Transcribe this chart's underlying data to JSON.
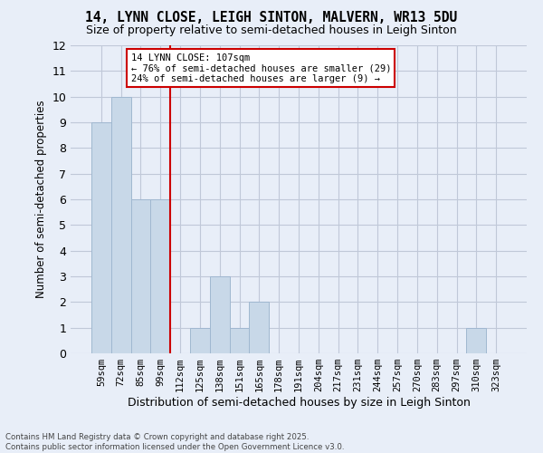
{
  "title": "14, LYNN CLOSE, LEIGH SINTON, MALVERN, WR13 5DU",
  "subtitle": "Size of property relative to semi-detached houses in Leigh Sinton",
  "xlabel": "Distribution of semi-detached houses by size in Leigh Sinton",
  "ylabel": "Number of semi-detached properties",
  "footer_line1": "Contains HM Land Registry data © Crown copyright and database right 2025.",
  "footer_line2": "Contains public sector information licensed under the Open Government Licence v3.0.",
  "categories": [
    "59sqm",
    "72sqm",
    "85sqm",
    "99sqm",
    "112sqm",
    "125sqm",
    "138sqm",
    "151sqm",
    "165sqm",
    "178sqm",
    "191sqm",
    "204sqm",
    "217sqm",
    "231sqm",
    "244sqm",
    "257sqm",
    "270sqm",
    "283sqm",
    "297sqm",
    "310sqm",
    "323sqm"
  ],
  "values": [
    9,
    10,
    6,
    6,
    0,
    1,
    3,
    1,
    2,
    0,
    0,
    0,
    0,
    0,
    0,
    0,
    0,
    0,
    0,
    1,
    0
  ],
  "bar_color": "#c8d8e8",
  "bar_edge_color": "#a0b8d0",
  "grid_color": "#c0c8d8",
  "background_color": "#e8eef8",
  "annotation_title": "14 LYNN CLOSE: 107sqm",
  "annotation_line1": "← 76% of semi-detached houses are smaller (29)",
  "annotation_line2": "24% of semi-detached houses are larger (9) →",
  "annotation_box_color": "#ffffff",
  "annotation_border_color": "#cc0000",
  "ylim": [
    0,
    12
  ],
  "yticks": [
    0,
    1,
    2,
    3,
    4,
    5,
    6,
    7,
    8,
    9,
    10,
    11,
    12
  ]
}
